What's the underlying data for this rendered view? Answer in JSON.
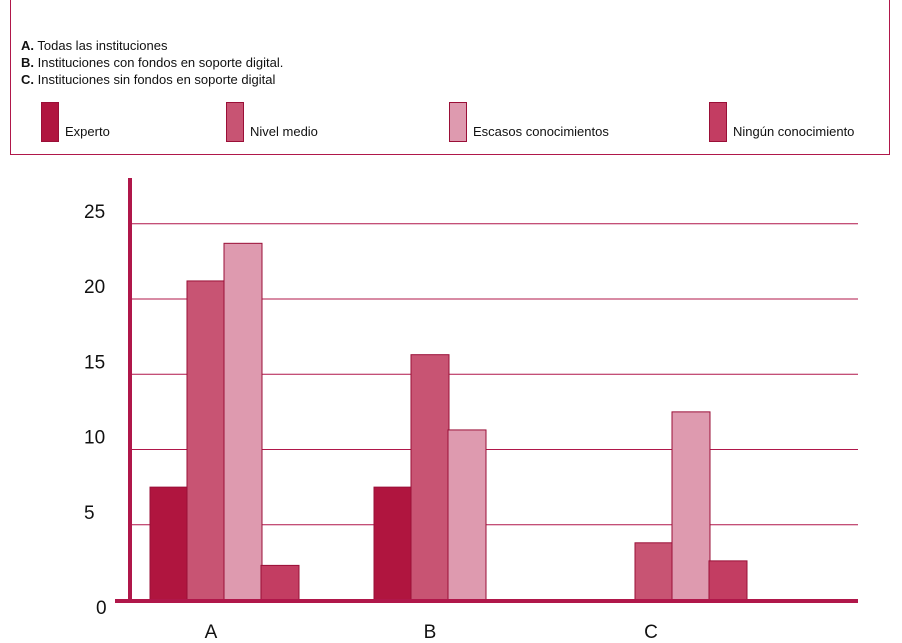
{
  "notes": [
    {
      "key": "A.",
      "text": " Todas las instituciones"
    },
    {
      "key": "B.",
      "text": " Instituciones con fondos en soporte digital."
    },
    {
      "key": "C.",
      "text": " Instituciones sin fondos en soporte digital"
    }
  ],
  "legend": [
    {
      "label": "Experto"
    },
    {
      "label": "Nivel medio"
    },
    {
      "label": "Escasos conocimientos"
    },
    {
      "label": "Ningún conocimiento"
    }
  ],
  "colors": {
    "experto": "#b0153f",
    "nivel_medio": "#c85473",
    "escasos": "#de9aaf",
    "ninguno": "#c33d62",
    "axis": "#b0174a",
    "grid": "#b0174a"
  },
  "chart_data": {
    "type": "bar",
    "title": "",
    "xlabel": "",
    "ylabel": "",
    "categories": [
      "A",
      "B",
      "C"
    ],
    "ylim": [
      0,
      27
    ],
    "yticks": [
      0,
      5,
      10,
      15,
      20,
      25
    ],
    "grid": true,
    "legend_position": "top",
    "series": [
      {
        "name": "Experto",
        "color": "#b0153f",
        "values": [
          7.5,
          7.5,
          0
        ]
      },
      {
        "name": "Nivel medio",
        "color": "#c85473",
        "values": [
          21.2,
          16.3,
          3.8
        ]
      },
      {
        "name": "Escasos conocimientos",
        "color": "#de9aaf",
        "values": [
          23.7,
          11.3,
          12.5
        ]
      },
      {
        "name": "Ningún conocimiento",
        "color": "#c33d62",
        "values": [
          2.3,
          0,
          2.6
        ]
      }
    ]
  }
}
